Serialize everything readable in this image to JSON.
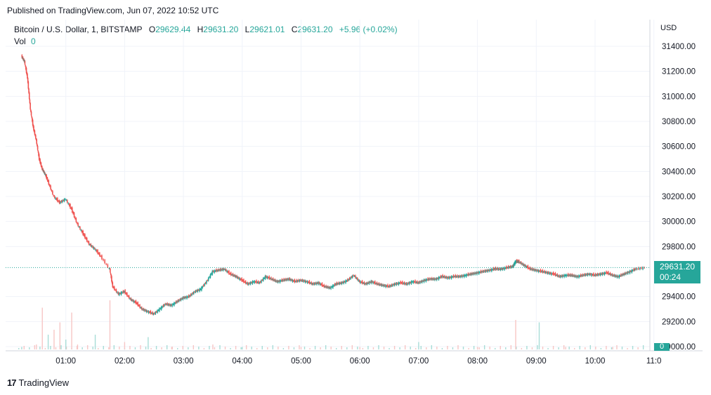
{
  "published": "Published on TradingView.com, Jun 07, 2022 10:52 UTC",
  "legend": {
    "symbol": "Bitcoin / U.S. Dollar, 1, BITSTAMP",
    "o_label": "O",
    "o_value": "29629.44",
    "h_label": "H",
    "h_value": "29631.20",
    "l_label": "L",
    "l_value": "29621.01",
    "c_label": "C",
    "c_value": "29631.20",
    "change": "+5.96 (+0.02%)"
  },
  "vol": {
    "label": "Vol",
    "value": "0"
  },
  "currency": "USD",
  "last_price": {
    "price": "29631.20",
    "countdown": "00:24"
  },
  "vol_last": "0",
  "footer": {
    "brand": "TradingView"
  },
  "colors": {
    "up": "#26a69a",
    "down": "#ef5350",
    "grid": "#f0f3fa"
  },
  "chart_data": {
    "type": "line",
    "title": "Bitcoin / U.S. Dollar, 1, BITSTAMP",
    "x_ticks": [
      "01:00",
      "02:00",
      "03:00",
      "04:00",
      "05:00",
      "06:00",
      "07:00",
      "08:00",
      "09:00",
      "10:00",
      "11:0"
    ],
    "y_ticks": [
      "31400.00",
      "31200.00",
      "31000.00",
      "30800.00",
      "30600.00",
      "30400.00",
      "30200.00",
      "30000.00",
      "29800.00",
      "29400.00",
      "29200.00",
      "29000.00"
    ],
    "ylim": [
      29000,
      31400
    ],
    "last_price": 29631.2,
    "price_path": [
      [
        0.25,
        31320
      ],
      [
        0.3,
        31280
      ],
      [
        0.35,
        31150
      ],
      [
        0.4,
        30900
      ],
      [
        0.45,
        30750
      ],
      [
        0.5,
        30650
      ],
      [
        0.55,
        30500
      ],
      [
        0.6,
        30420
      ],
      [
        0.65,
        30380
      ],
      [
        0.7,
        30320
      ],
      [
        0.8,
        30200
      ],
      [
        0.9,
        30150
      ],
      [
        1.0,
        30180
      ],
      [
        1.1,
        30100
      ],
      [
        1.2,
        29980
      ],
      [
        1.3,
        29900
      ],
      [
        1.4,
        29820
      ],
      [
        1.5,
        29780
      ],
      [
        1.6,
        29720
      ],
      [
        1.75,
        29620
      ],
      [
        1.8,
        29480
      ],
      [
        1.9,
        29420
      ],
      [
        2.0,
        29440
      ],
      [
        2.1,
        29380
      ],
      [
        2.2,
        29350
      ],
      [
        2.3,
        29300
      ],
      [
        2.4,
        29280
      ],
      [
        2.5,
        29260
      ],
      [
        2.6,
        29300
      ],
      [
        2.7,
        29340
      ],
      [
        2.8,
        29330
      ],
      [
        2.9,
        29360
      ],
      [
        3.0,
        29390
      ],
      [
        3.1,
        29400
      ],
      [
        3.2,
        29440
      ],
      [
        3.3,
        29460
      ],
      [
        3.4,
        29520
      ],
      [
        3.5,
        29600
      ],
      [
        3.6,
        29610
      ],
      [
        3.7,
        29620
      ],
      [
        3.8,
        29580
      ],
      [
        3.9,
        29560
      ],
      [
        4.0,
        29530
      ],
      [
        4.1,
        29500
      ],
      [
        4.2,
        29520
      ],
      [
        4.3,
        29510
      ],
      [
        4.4,
        29560
      ],
      [
        4.5,
        29540
      ],
      [
        4.6,
        29520
      ],
      [
        4.7,
        29530
      ],
      [
        4.8,
        29540
      ],
      [
        4.9,
        29520
      ],
      [
        5.0,
        29530
      ],
      [
        5.1,
        29520
      ],
      [
        5.2,
        29500
      ],
      [
        5.3,
        29510
      ],
      [
        5.4,
        29480
      ],
      [
        5.5,
        29470
      ],
      [
        5.6,
        29500
      ],
      [
        5.7,
        29510
      ],
      [
        5.8,
        29530
      ],
      [
        5.9,
        29570
      ],
      [
        6.0,
        29520
      ],
      [
        6.1,
        29500
      ],
      [
        6.2,
        29520
      ],
      [
        6.3,
        29500
      ],
      [
        6.4,
        29490
      ],
      [
        6.5,
        29480
      ],
      [
        6.6,
        29500
      ],
      [
        6.7,
        29510
      ],
      [
        6.8,
        29500
      ],
      [
        6.9,
        29520
      ],
      [
        7.0,
        29510
      ],
      [
        7.1,
        29530
      ],
      [
        7.2,
        29540
      ],
      [
        7.3,
        29540
      ],
      [
        7.4,
        29560
      ],
      [
        7.5,
        29550
      ],
      [
        7.6,
        29560
      ],
      [
        7.7,
        29560
      ],
      [
        7.8,
        29570
      ],
      [
        7.9,
        29580
      ],
      [
        8.0,
        29590
      ],
      [
        8.1,
        29600
      ],
      [
        8.2,
        29610
      ],
      [
        8.3,
        29620
      ],
      [
        8.4,
        29620
      ],
      [
        8.5,
        29630
      ],
      [
        8.6,
        29640
      ],
      [
        8.65,
        29680
      ],
      [
        8.7,
        29680
      ],
      [
        8.8,
        29650
      ],
      [
        8.9,
        29620
      ],
      [
        9.0,
        29610
      ],
      [
        9.1,
        29600
      ],
      [
        9.2,
        29590
      ],
      [
        9.3,
        29580
      ],
      [
        9.4,
        29560
      ],
      [
        9.5,
        29570
      ],
      [
        9.6,
        29570
      ],
      [
        9.7,
        29560
      ],
      [
        9.8,
        29570
      ],
      [
        9.9,
        29580
      ],
      [
        10.0,
        29570
      ],
      [
        10.1,
        29580
      ],
      [
        10.2,
        29590
      ],
      [
        10.3,
        29570
      ],
      [
        10.4,
        29560
      ],
      [
        10.5,
        29580
      ],
      [
        10.6,
        29600
      ],
      [
        10.7,
        29620
      ],
      [
        10.85,
        29631
      ]
    ],
    "volume": [
      [
        0.25,
        0.05
      ],
      [
        0.5,
        0.1
      ],
      [
        0.6,
        0.85
      ],
      [
        0.7,
        0.3
      ],
      [
        0.8,
        0.4
      ],
      [
        0.9,
        0.55
      ],
      [
        1.0,
        0.2
      ],
      [
        1.1,
        0.75
      ],
      [
        1.2,
        0.1
      ],
      [
        1.5,
        0.3
      ],
      [
        1.75,
        1.0
      ],
      [
        2.0,
        0.15
      ],
      [
        2.4,
        0.25
      ],
      [
        2.8,
        0.05
      ],
      [
        3.5,
        0.1
      ],
      [
        4.0,
        0.05
      ],
      [
        5.0,
        0.05
      ],
      [
        6.0,
        0.05
      ],
      [
        7.0,
        0.15
      ],
      [
        8.0,
        0.05
      ],
      [
        8.65,
        0.6
      ],
      [
        9.05,
        0.55
      ],
      [
        9.5,
        0.05
      ],
      [
        10.3,
        0.05
      ]
    ]
  }
}
